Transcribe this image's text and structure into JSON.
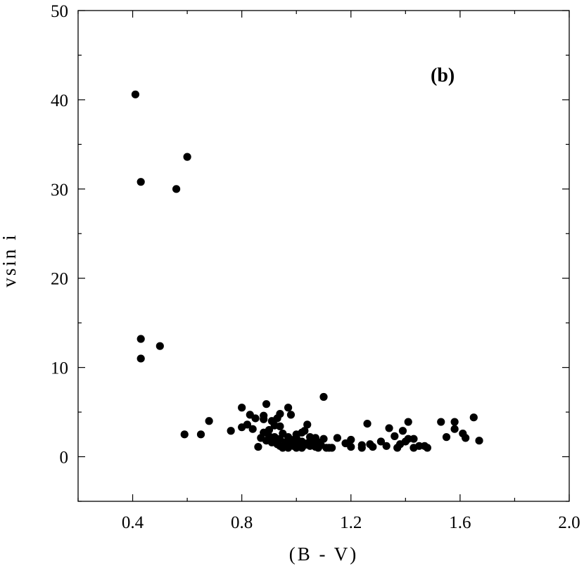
{
  "chart_data": {
    "type": "scatter",
    "title": "",
    "panel_label": "(b)",
    "xlabel": "(B - V)",
    "ylabel": "vsin i",
    "xlim": [
      0.2,
      2.0
    ],
    "ylim": [
      -5,
      50
    ],
    "xticks": [
      0.4,
      0.8,
      1.2,
      1.6,
      2.0
    ],
    "xtick_labels": [
      "0.4",
      "0.8",
      "1.2",
      "1.6",
      "2.0"
    ],
    "xminor": [
      0.2,
      0.6,
      1.0,
      1.4,
      1.8
    ],
    "yticks": [
      0,
      10,
      20,
      30,
      40,
      50
    ],
    "ytick_labels": [
      "0",
      "10",
      "20",
      "30",
      "40",
      "50"
    ],
    "yminor": [
      -5,
      5,
      15,
      25,
      35,
      45
    ],
    "grid": false,
    "marker_color": "#000000",
    "series": [
      {
        "points": [
          [
            0.41,
            40.6
          ],
          [
            0.6,
            33.6
          ],
          [
            0.43,
            30.8
          ],
          [
            0.56,
            30.0
          ],
          [
            0.43,
            13.2
          ],
          [
            0.5,
            12.4
          ],
          [
            0.43,
            11.0
          ],
          [
            0.59,
            2.5
          ],
          [
            0.65,
            2.5
          ],
          [
            0.68,
            4.0
          ],
          [
            0.76,
            2.9
          ],
          [
            0.8,
            5.5
          ],
          [
            0.8,
            3.3
          ],
          [
            0.82,
            3.6
          ],
          [
            0.83,
            4.7
          ],
          [
            0.84,
            3.1
          ],
          [
            0.85,
            4.3
          ],
          [
            0.86,
            1.1
          ],
          [
            0.87,
            2.1
          ],
          [
            0.88,
            4.6
          ],
          [
            0.88,
            4.2
          ],
          [
            0.88,
            2.7
          ],
          [
            0.89,
            5.9
          ],
          [
            0.89,
            1.8
          ],
          [
            0.9,
            3.0
          ],
          [
            0.9,
            2.3
          ],
          [
            0.91,
            4.0
          ],
          [
            0.91,
            1.6
          ],
          [
            0.92,
            3.5
          ],
          [
            0.92,
            2.2
          ],
          [
            0.93,
            1.4
          ],
          [
            0.93,
            4.3
          ],
          [
            0.94,
            3.4
          ],
          [
            0.94,
            2.0
          ],
          [
            0.94,
            1.2
          ],
          [
            0.94,
            4.8
          ],
          [
            0.95,
            1.0
          ],
          [
            0.95,
            2.6
          ],
          [
            0.96,
            1.6
          ],
          [
            0.97,
            5.5
          ],
          [
            0.97,
            2.2
          ],
          [
            0.97,
            1.0
          ],
          [
            0.98,
            4.7
          ],
          [
            0.98,
            1.4
          ],
          [
            0.99,
            1.9
          ],
          [
            0.99,
            1.2
          ],
          [
            1.0,
            2.1
          ],
          [
            1.0,
            1.0
          ],
          [
            1.0,
            2.5
          ],
          [
            1.01,
            1.6
          ],
          [
            1.01,
            1.1
          ],
          [
            1.02,
            2.7
          ],
          [
            1.02,
            1.0
          ],
          [
            1.02,
            1.7
          ],
          [
            1.03,
            1.3
          ],
          [
            1.03,
            2.9
          ],
          [
            1.04,
            1.5
          ],
          [
            1.04,
            3.6
          ],
          [
            1.05,
            1.2
          ],
          [
            1.05,
            2.2
          ],
          [
            1.06,
            1.4
          ],
          [
            1.06,
            1.9
          ],
          [
            1.07,
            1.1
          ],
          [
            1.07,
            2.1
          ],
          [
            1.08,
            1.6
          ],
          [
            1.08,
            1.0
          ],
          [
            1.09,
            1.3
          ],
          [
            1.1,
            6.7
          ],
          [
            1.1,
            2.0
          ],
          [
            1.11,
            1.0
          ],
          [
            1.12,
            1.0
          ],
          [
            1.13,
            1.0
          ],
          [
            1.15,
            2.1
          ],
          [
            1.18,
            1.5
          ],
          [
            1.2,
            1.9
          ],
          [
            1.2,
            1.1
          ],
          [
            1.24,
            1.3
          ],
          [
            1.24,
            1.0
          ],
          [
            1.26,
            3.7
          ],
          [
            1.27,
            1.4
          ],
          [
            1.28,
            1.1
          ],
          [
            1.31,
            1.7
          ],
          [
            1.33,
            1.2
          ],
          [
            1.34,
            3.2
          ],
          [
            1.36,
            2.3
          ],
          [
            1.37,
            1.0
          ],
          [
            1.38,
            1.4
          ],
          [
            1.39,
            2.9
          ],
          [
            1.4,
            1.7
          ],
          [
            1.41,
            2.0
          ],
          [
            1.41,
            3.9
          ],
          [
            1.43,
            1.0
          ],
          [
            1.43,
            2.0
          ],
          [
            1.45,
            1.2
          ],
          [
            1.47,
            1.2
          ],
          [
            1.48,
            1.0
          ],
          [
            1.53,
            3.9
          ],
          [
            1.55,
            2.2
          ],
          [
            1.58,
            3.9
          ],
          [
            1.58,
            3.1
          ],
          [
            1.61,
            2.6
          ],
          [
            1.62,
            2.1
          ],
          [
            1.65,
            4.4
          ],
          [
            1.67,
            1.8
          ]
        ]
      }
    ]
  }
}
